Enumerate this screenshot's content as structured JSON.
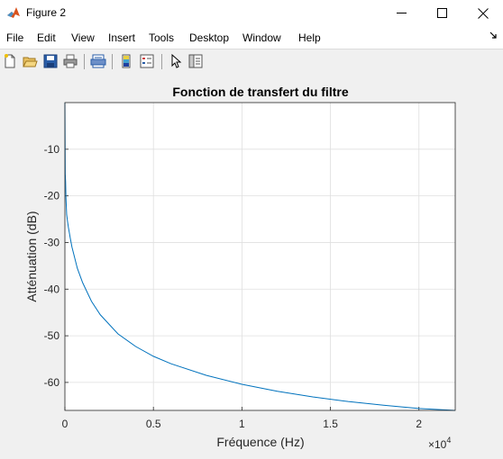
{
  "window": {
    "title": "Figure 2",
    "icon": "matlab-icon",
    "controls": [
      "minimize-icon",
      "maximize-icon",
      "close-icon"
    ]
  },
  "menu": {
    "items": [
      "File",
      "Edit",
      "View",
      "Insert",
      "Tools",
      "Desktop",
      "Window",
      "Help"
    ]
  },
  "toolbar": {
    "buttons": [
      "new-figure-icon",
      "open-file-icon",
      "save-icon",
      "print-icon",
      "print-preview-icon",
      "colorbar-icon",
      "legend-icon",
      "pointer-icon",
      "property-editor-icon"
    ]
  },
  "chart_data": {
    "type": "line",
    "title": "Fonction de transfert du filtre",
    "xlabel": "Fréquence (Hz)",
    "ylabel": "Atténuation (dB)",
    "x_exponent_label": "×10",
    "x_exponent": "4",
    "xlim": [
      0,
      22050
    ],
    "ylim": [
      -66,
      0
    ],
    "xticks": [
      0,
      5000,
      10000,
      15000,
      20000
    ],
    "xtick_labels": [
      "0",
      "0.5",
      "1",
      "1.5",
      "2"
    ],
    "yticks": [
      -60,
      -50,
      -40,
      -30,
      -20,
      -10
    ],
    "ytick_labels": [
      "-60",
      "-50",
      "-40",
      "-30",
      "-20",
      "-10"
    ],
    "grid": true,
    "line_color": "#0072bd",
    "series": [
      {
        "x": [
          0,
          20,
          40,
          60,
          100,
          150,
          200,
          300,
          400,
          500,
          700,
          1000,
          1500,
          2000,
          3000,
          4000,
          5000,
          6000,
          8000,
          10000,
          12000,
          14000,
          16000,
          18000,
          20000,
          22050
        ],
        "y": [
          0,
          -15.3,
          -17.0,
          -20.5,
          -24.0,
          -25.5,
          -26.8,
          -29.0,
          -31.0,
          -32.5,
          -35.5,
          -38.6,
          -42.6,
          -45.5,
          -49.6,
          -52.3,
          -54.4,
          -56.0,
          -58.5,
          -60.4,
          -61.9,
          -63.1,
          -64.1,
          -64.9,
          -65.6,
          -66.0
        ]
      }
    ]
  }
}
